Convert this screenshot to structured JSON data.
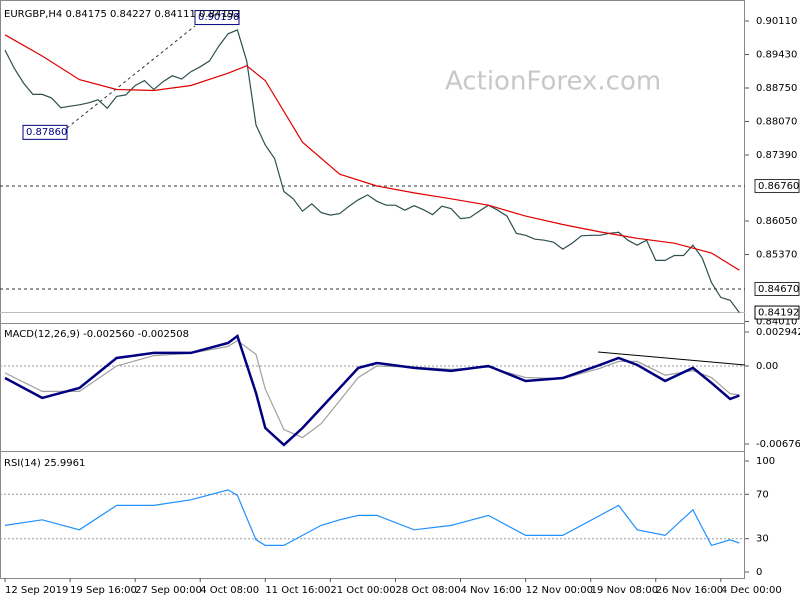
{
  "chart_data": [
    {
      "type": "line",
      "title": "EURGBP,H4  0.84175 0.84227 0.84111 0.84192",
      "watermark": "ActionForex.com",
      "xlim": [
        -0.54,
        79.6
      ],
      "ylim": [
        0.84,
        0.90435
      ],
      "yticks": [
        {
          "value": 0.9011,
          "label": "0.90110"
        },
        {
          "value": 0.8943,
          "label": "0.89430"
        },
        {
          "value": 0.8875,
          "label": "0.88750"
        },
        {
          "value": 0.8807,
          "label": "0.88070"
        },
        {
          "value": 0.8739,
          "label": "0.87390"
        },
        {
          "value": 0.8605,
          "label": "0.86050"
        },
        {
          "value": 0.8537,
          "label": "0.85370"
        },
        {
          "value": 0.8401,
          "label": "0.84010"
        }
      ],
      "levels": [
        {
          "value": 0.8676,
          "label": "0.86760"
        },
        {
          "value": 0.8467,
          "label": "0.84670"
        }
      ],
      "current": {
        "value": 0.84192,
        "label": "0.84192"
      },
      "annotations": [
        {
          "value": 0.9019,
          "label": "0.90190"
        },
        {
          "value": 0.8786,
          "label": "0.87860"
        }
      ],
      "series": [
        {
          "color": "#2f4f4f",
          "values": [
            0.8952,
            0.8915,
            0.8885,
            0.8862,
            0.8862,
            0.8855,
            0.8835,
            0.8838,
            0.8841,
            0.8845,
            0.8851,
            0.8834,
            0.8858,
            0.8861,
            0.888,
            0.889,
            0.8872,
            0.8888,
            0.89,
            0.8893,
            0.8908,
            0.8918,
            0.893,
            0.896,
            0.8985,
            0.8993,
            0.893,
            0.88,
            0.8759,
            0.8732,
            0.8665,
            0.865,
            0.8625,
            0.864,
            0.8622,
            0.8617,
            0.862,
            0.8635,
            0.8648,
            0.8658,
            0.8645,
            0.8637,
            0.8637,
            0.8627,
            0.8636,
            0.8628,
            0.8618,
            0.8635,
            0.863,
            0.861,
            0.8612,
            0.8625,
            0.8637,
            0.8627,
            0.8615,
            0.858,
            0.8576,
            0.8568,
            0.8566,
            0.8562,
            0.8548,
            0.856,
            0.8575,
            0.8576,
            0.8576,
            0.858,
            0.8582,
            0.8566,
            0.8556,
            0.8566,
            0.8525,
            0.8525,
            0.8535,
            0.8535,
            0.8556,
            0.853,
            0.848,
            0.845,
            0.8444,
            0.8419
          ]
        },
        {
          "color": "#e00000",
          "x": [
            0,
            4,
            8,
            12,
            16,
            20,
            24,
            26,
            28,
            32,
            36,
            40,
            44,
            48,
            52,
            56,
            60,
            64,
            68,
            72,
            76,
            79
          ],
          "values": [
            0.8983,
            0.894,
            0.8892,
            0.8872,
            0.887,
            0.888,
            0.8905,
            0.892,
            0.889,
            0.8765,
            0.87,
            0.8676,
            0.8662,
            0.865,
            0.8637,
            0.8615,
            0.8598,
            0.8583,
            0.857,
            0.856,
            0.854,
            0.8505
          ]
        }
      ]
    },
    {
      "type": "line",
      "title": "MACD(12,26,9) -0.002560 -0.002508",
      "xlim": [
        -0.54,
        79.6
      ],
      "ylim": [
        -0.00728,
        0.00355
      ],
      "yticks": [
        0.002942,
        {
          "value": 0,
          "label": "0.00"
        },
        -0.006761
      ],
      "levels": [
        0
      ],
      "series": [
        {
          "color": "#a0a0a0",
          "x": [
            0,
            4,
            8,
            12,
            16,
            20,
            24,
            25,
            27,
            28,
            30,
            32,
            34,
            36,
            38,
            40,
            44,
            48,
            52,
            56,
            60,
            64,
            66,
            68,
            71,
            74,
            76,
            78,
            79
          ],
          "values": [
            -0.0006,
            -0.0022,
            -0.0022,
            0,
            0.0009,
            0.0011,
            0.0017,
            0.0022,
            0.001,
            -0.002,
            -0.0055,
            -0.0062,
            -0.005,
            -0.003,
            -0.001,
            0,
            -0.0001,
            -0.0003,
            -0.0001,
            -0.001,
            -0.0011,
            -0.0002,
            0.0004,
            0.0004,
            -0.0008,
            -0.0004,
            -0.001,
            -0.0024,
            -0.002508
          ]
        },
        {
          "color": "#000080",
          "width": 2.5,
          "x": [
            0,
            4,
            8,
            12,
            16,
            20,
            24,
            25,
            27,
            28,
            30,
            32,
            34,
            36,
            38,
            40,
            44,
            48,
            52,
            56,
            60,
            64,
            66,
            68,
            71,
            74,
            76,
            78,
            79
          ],
          "values": [
            -0.00104,
            -0.00277,
            -0.00191,
            0.00069,
            0.00113,
            0.00113,
            0.00199,
            0.0026,
            -0.00234,
            -0.00537,
            -0.00684,
            -0.00537,
            -0.00364,
            -0.00191,
            -0.00017,
            0.00026,
            -0.00017,
            -0.00043,
            0,
            -0.0013,
            -0.00104,
            9e-05,
            0.00069,
            9e-05,
            -0.0013,
            -0.00017,
            -0.00147,
            -0.00286,
            -0.00256
          ]
        }
      ]
    },
    {
      "type": "line",
      "title": "RSI(14) 25.9961",
      "xlim": [
        -0.54,
        79.6
      ],
      "ylim": [
        -5.4,
        106.3
      ],
      "yticks": [
        100,
        70,
        30,
        0
      ],
      "levels": [
        70,
        30
      ],
      "xticks": [
        {
          "value": 0,
          "label": "12 Sep 2019"
        },
        {
          "value": 7,
          "label": "19 Sep 16:00"
        },
        {
          "value": 14,
          "label": "27 Sep 00:00"
        },
        {
          "value": 21,
          "label": "4 Oct 08:00"
        },
        {
          "value": 28,
          "label": "11 Oct 16:00"
        },
        {
          "value": 35,
          "label": "21 Oct 00:00"
        },
        {
          "value": 42,
          "label": "28 Oct 08:00"
        },
        {
          "value": 49,
          "label": "4 Nov 16:00"
        },
        {
          "value": 56,
          "label": "12 Nov 00:00"
        },
        {
          "value": 63,
          "label": "19 Nov 08:00"
        },
        {
          "value": 70,
          "label": "26 Nov 16:00"
        },
        {
          "value": 77,
          "label": "4 Dec 00:00"
        }
      ],
      "series": [
        {
          "color": "#1e90ff",
          "x": [
            0,
            4,
            8,
            12,
            16,
            20,
            24,
            25,
            27,
            28,
            30,
            32,
            34,
            36,
            38,
            40,
            44,
            48,
            52,
            56,
            60,
            64,
            66,
            68,
            71,
            74,
            76,
            78,
            79
          ],
          "values": [
            42,
            47,
            38,
            60,
            60,
            65,
            74,
            69,
            29,
            24,
            24,
            33,
            42,
            47,
            51,
            51,
            38,
            42,
            51,
            33,
            33,
            51,
            60,
            38,
            33,
            56,
            24,
            29,
            25.9961
          ]
        }
      ]
    }
  ]
}
